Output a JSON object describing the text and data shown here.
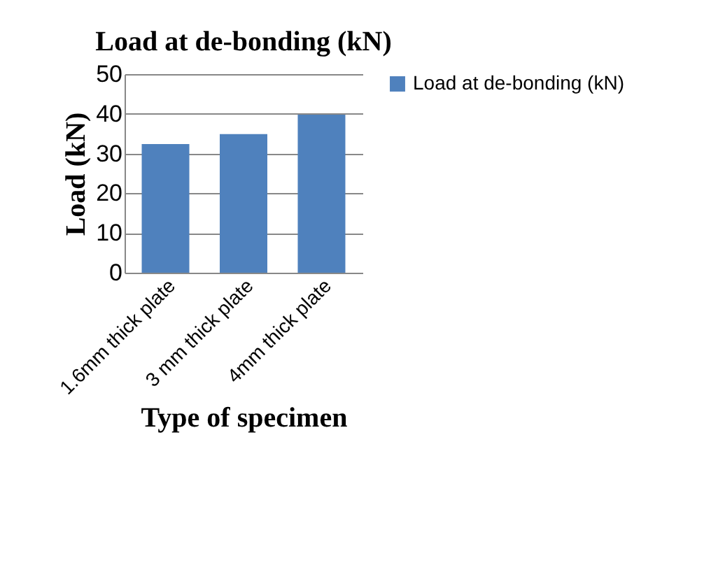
{
  "chart_data": {
    "type": "bar",
    "title": "Load at de-bonding (kN)",
    "xlabel": "Type of specimen",
    "ylabel": "Load (kN)",
    "categories": [
      "1.6mm thick plate",
      "3 mm thick plate",
      "4mm thick plate"
    ],
    "series": [
      {
        "name": "Load at de-bonding (kN)",
        "color": "#4f81bd",
        "values": [
          32.4,
          34.9,
          39.8
        ]
      }
    ],
    "ylim": [
      0,
      50
    ],
    "yticks": [
      0,
      10,
      20,
      30,
      40,
      50
    ],
    "grid": "y",
    "legend": "right"
  }
}
